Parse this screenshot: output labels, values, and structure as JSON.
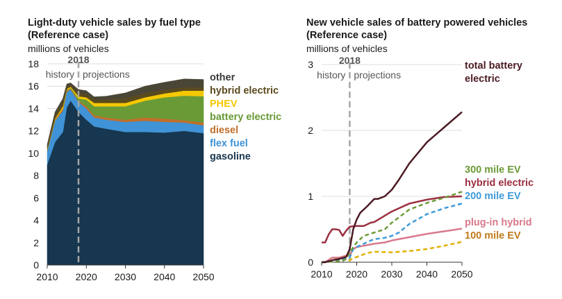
{
  "chart_data": [
    {
      "type": "area",
      "stacked": true,
      "title": "Light-duty vehicle sales by fuel type",
      "subtitle": "(Reference case)",
      "ylabel": "millions of vehicles",
      "xlim": [
        2010,
        2050
      ],
      "ylim": [
        0,
        18
      ],
      "xticks": [
        "2010",
        "2020",
        "2030",
        "2040",
        "2050"
      ],
      "yticks": [
        "0",
        "2",
        "4",
        "6",
        "8",
        "10",
        "12",
        "14",
        "16",
        "18"
      ],
      "grid": true,
      "divider": {
        "year": 2018,
        "label": "2018",
        "left_label": "history",
        "right_label": "projections"
      },
      "x": [
        2010,
        2012,
        2014,
        2015,
        2016,
        2018,
        2020,
        2022,
        2025,
        2030,
        2035,
        2040,
        2045,
        2050
      ],
      "series": [
        {
          "name": "gasoline",
          "color": "#17364f",
          "values": [
            9.0,
            11.0,
            11.9,
            14.1,
            14.7,
            13.7,
            13.0,
            12.4,
            12.2,
            11.9,
            11.9,
            11.85,
            12.0,
            11.8
          ]
        },
        {
          "name": "flex fuel",
          "color": "#3f93d6",
          "values": [
            1.2,
            1.9,
            1.9,
            1.4,
            1.0,
            0.9,
            1.0,
            0.8,
            0.8,
            0.9,
            1.0,
            0.95,
            0.75,
            0.7
          ]
        },
        {
          "name": "diesel",
          "color": "#c06e2a",
          "values": [
            0.1,
            0.1,
            0.2,
            0.1,
            0.1,
            0.1,
            0.2,
            0.2,
            0.2,
            0.2,
            0.3,
            0.3,
            0.2,
            0.25
          ]
        },
        {
          "name": "battery electric",
          "color": "#6a9a36",
          "values": [
            0,
            0,
            0,
            0.05,
            0.05,
            0.2,
            0.6,
            0.8,
            1.0,
            1.2,
            1.5,
            1.9,
            2.2,
            2.35
          ]
        },
        {
          "name": "PHEV",
          "color": "#f5c800",
          "values": [
            0.05,
            0.1,
            0.2,
            0.1,
            0.1,
            0.2,
            0.2,
            0.3,
            0.3,
            0.3,
            0.3,
            0.35,
            0.45,
            0.5
          ]
        },
        {
          "name": "hybrid electric",
          "color": "#5a4a1e",
          "values": [
            0.25,
            0.3,
            0.4,
            0.25,
            0.15,
            0.3,
            0.3,
            0.3,
            0.3,
            0.4,
            0.4,
            0.35,
            0.3,
            0.3
          ]
        },
        {
          "name": "other",
          "color": "#4a4636",
          "values": [
            0.2,
            0.3,
            0.3,
            0.2,
            0.2,
            0.3,
            0.3,
            0.25,
            0.3,
            0.5,
            0.6,
            0.65,
            0.75,
            0.7
          ]
        }
      ],
      "legend_colors": {
        "other": "#3a3a3a",
        "hybrid electric": "#5a4a1e",
        "PHEV": "#f5c800",
        "battery electric": "#6a9a36",
        "diesel": "#c06e2a",
        "flex fuel": "#3f93d6",
        "gasoline": "#17364f"
      }
    },
    {
      "type": "line",
      "title": "New vehicle sales of battery powered vehicles",
      "subtitle": "(Reference case)",
      "ylabel": "millions of vehicles",
      "xlim": [
        2010,
        2050
      ],
      "ylim": [
        0,
        3
      ],
      "xticks": [
        "2010",
        "2020",
        "2030",
        "2040",
        "2050"
      ],
      "yticks": [
        "0",
        "1",
        "2",
        "3"
      ],
      "grid": true,
      "divider": {
        "year": 2018,
        "label": "2018",
        "left_label": "history",
        "right_label": "projections"
      },
      "series": [
        {
          "name": "total battery electric",
          "label_lines": [
            "total battery",
            "electric"
          ],
          "color": "#4b1a22",
          "label_color": "#4b1a22",
          "dashed": false,
          "x": [
            2010,
            2011,
            2013,
            2015,
            2017,
            2018,
            2019,
            2020,
            2021,
            2023,
            2025,
            2026,
            2028,
            2030,
            2032,
            2035,
            2040,
            2045,
            2050
          ],
          "y": [
            0,
            0,
            0.03,
            0.05,
            0.08,
            0.2,
            0.5,
            0.65,
            0.75,
            0.85,
            0.96,
            0.96,
            1.0,
            1.1,
            1.25,
            1.5,
            1.82,
            2.05,
            2.28
          ]
        },
        {
          "name": "300 mile EV",
          "color": "#6c9b38",
          "label_color": "#6c9b38",
          "dashed": true,
          "x": [
            2010,
            2016,
            2017,
            2018,
            2020,
            2022,
            2025,
            2028,
            2030,
            2035,
            2040,
            2045,
            2050
          ],
          "y": [
            0,
            0.02,
            0.05,
            0.15,
            0.3,
            0.4,
            0.45,
            0.5,
            0.6,
            0.8,
            0.9,
            0.98,
            1.07
          ]
        },
        {
          "name": "hybrid electric",
          "color": "#9b2f3f",
          "label_color": "#9b2f3f",
          "dashed": false,
          "x": [
            2010,
            2011,
            2012,
            2013,
            2014,
            2015,
            2016,
            2017,
            2018,
            2020,
            2022,
            2024,
            2025,
            2030,
            2035,
            2040,
            2045,
            2050
          ],
          "y": [
            0.3,
            0.3,
            0.42,
            0.5,
            0.5,
            0.49,
            0.4,
            0.48,
            0.54,
            0.55,
            0.55,
            0.6,
            0.61,
            0.77,
            0.89,
            0.95,
            0.99,
            1.0
          ]
        },
        {
          "name": "200 mile EV",
          "color": "#3e9ad9",
          "label_color": "#3e9ad9",
          "dashed": true,
          "x": [
            2010,
            2017,
            2018,
            2019,
            2020,
            2022,
            2024,
            2025,
            2028,
            2030,
            2032,
            2035,
            2040,
            2045,
            2050
          ],
          "y": [
            0,
            0.05,
            0.07,
            0.2,
            0.23,
            0.28,
            0.33,
            0.35,
            0.37,
            0.4,
            0.45,
            0.58,
            0.73,
            0.82,
            0.89
          ]
        },
        {
          "name": "plug-in hybrid",
          "color": "#d8798a",
          "label_color": "#d8798a",
          "dashed": false,
          "x": [
            2010,
            2011,
            2013,
            2015,
            2017,
            2018,
            2019,
            2020,
            2025,
            2028,
            2030,
            2035,
            2040,
            2045,
            2050
          ],
          "y": [
            0,
            0,
            0.07,
            0.07,
            0.1,
            0.1,
            0.2,
            0.23,
            0.28,
            0.3,
            0.33,
            0.38,
            0.43,
            0.47,
            0.51
          ]
        },
        {
          "name": "100 mile EV",
          "color": "#e0b000",
          "label_color": "#c07a1a",
          "dashed": true,
          "x": [
            2010,
            2013,
            2014,
            2015,
            2016,
            2017,
            2018,
            2019,
            2020,
            2023,
            2025,
            2030,
            2035,
            2040,
            2045,
            2050
          ],
          "y": [
            0,
            0.02,
            0.05,
            0.06,
            0.05,
            0.03,
            0.03,
            0.06,
            0.08,
            0.14,
            0.16,
            0.15,
            0.17,
            0.2,
            0.25,
            0.31
          ]
        }
      ]
    }
  ]
}
